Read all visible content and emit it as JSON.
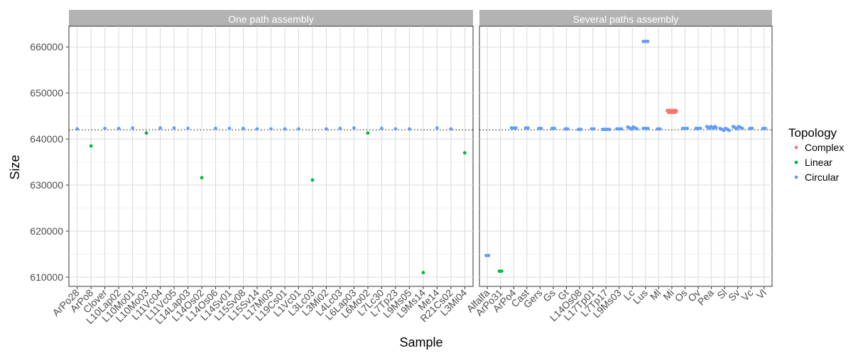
{
  "colors": {
    "Complex": "#F8766D",
    "Linear": "#00BA38",
    "Circular": "#619CFF"
  },
  "chart_data": {
    "type": "scatter",
    "ylabel": "Size",
    "xlabel": "Sample",
    "ylim": [
      608000,
      664500
    ],
    "yticks": [
      610000,
      620000,
      630000,
      640000,
      650000,
      660000
    ],
    "reference_line": 642000,
    "grid": true,
    "legend": {
      "title": "Topology",
      "position": "right",
      "entries": [
        "Complex",
        "Linear",
        "Circular"
      ]
    },
    "panels": [
      {
        "title": "One path assembly",
        "categories": [
          "ArPo28",
          "ArPo8",
          "Clover",
          "L10Lap02",
          "L10Mo01",
          "L10Mo03",
          "L11Vc04",
          "L11Vc05",
          "L14Lap03",
          "L14Os02",
          "L14Os06",
          "L14Sv01",
          "L15Sv08",
          "L15Sv14",
          "L17Mi03",
          "L19Cs01",
          "L1Vc01",
          "L3Lc03",
          "L3Mi02",
          "L4Lc03",
          "L6Lap03",
          "L6Mo02",
          "L7Lc30",
          "L7Tp23",
          "L9Ms05",
          "L9Ms14",
          "Me14",
          "R21Cs02",
          "L3Mi04"
        ],
        "points": [
          {
            "x": "ArPo28",
            "y": 642200,
            "topology": "Circular"
          },
          {
            "x": "ArPo8",
            "y": 638500,
            "topology": "Linear"
          },
          {
            "x": "Clover",
            "y": 642300,
            "topology": "Circular"
          },
          {
            "x": "L10Lap02",
            "y": 642300,
            "topology": "Circular"
          },
          {
            "x": "L10Mo01",
            "y": 642400,
            "topology": "Circular"
          },
          {
            "x": "L10Mo03",
            "y": 641300,
            "topology": "Linear"
          },
          {
            "x": "L11Vc04",
            "y": 642400,
            "topology": "Circular"
          },
          {
            "x": "L11Vc05",
            "y": 642400,
            "topology": "Circular"
          },
          {
            "x": "L14Lap03",
            "y": 642300,
            "topology": "Circular"
          },
          {
            "x": "L14Os02",
            "y": 631600,
            "topology": "Linear"
          },
          {
            "x": "L14Os06",
            "y": 642300,
            "topology": "Circular"
          },
          {
            "x": "L14Sv01",
            "y": 642300,
            "topology": "Circular"
          },
          {
            "x": "L15Sv08",
            "y": 642300,
            "topology": "Circular"
          },
          {
            "x": "L15Sv14",
            "y": 642200,
            "topology": "Circular"
          },
          {
            "x": "L17Mi03",
            "y": 642200,
            "topology": "Circular"
          },
          {
            "x": "L19Cs01",
            "y": 642200,
            "topology": "Circular"
          },
          {
            "x": "L1Vc01",
            "y": 642200,
            "topology": "Circular"
          },
          {
            "x": "L3Lc03",
            "y": 631100,
            "topology": "Linear"
          },
          {
            "x": "L3Mi02",
            "y": 642200,
            "topology": "Circular"
          },
          {
            "x": "L4Lc03",
            "y": 642300,
            "topology": "Circular"
          },
          {
            "x": "L6Lap03",
            "y": 642400,
            "topology": "Circular"
          },
          {
            "x": "L6Mo02",
            "y": 641300,
            "topology": "Linear"
          },
          {
            "x": "L7Lc30",
            "y": 642300,
            "topology": "Circular"
          },
          {
            "x": "L7Tp23",
            "y": 642200,
            "topology": "Circular"
          },
          {
            "x": "L9Ms05",
            "y": 642200,
            "topology": "Circular"
          },
          {
            "x": "L9Ms14",
            "y": 611000,
            "topology": "Linear"
          },
          {
            "x": "Me14",
            "y": 642400,
            "topology": "Circular"
          },
          {
            "x": "R21Cs02",
            "y": 642200,
            "topology": "Circular"
          },
          {
            "x": "L3Mi04",
            "y": 637000,
            "topology": "Linear"
          }
        ]
      },
      {
        "title": "Several paths assembly",
        "categories": [
          "Alfalfa",
          "ArPo31",
          "ArPo4",
          "Cast",
          "Gers",
          "Gs",
          "Gt",
          "L14Os08",
          "L17Tp01",
          "L7Tp17",
          "L9Ms03",
          "Lc",
          "Lus",
          "Ml",
          "Mi",
          "Os",
          "Ov",
          "Pea",
          "Sl",
          "Sv",
          "Vc",
          "Vl"
        ],
        "points": [
          {
            "x": "Alfalfa",
            "y": 614700,
            "topology": "Circular",
            "n": 2
          },
          {
            "x": "ArPo31",
            "y": 611300,
            "topology": "Linear",
            "n": 2
          },
          {
            "x": "ArPo4",
            "y": 642400,
            "topology": "Circular",
            "n": 3
          },
          {
            "x": "Cast",
            "y": 642400,
            "topology": "Circular",
            "n": 2
          },
          {
            "x": "Gers",
            "y": 642300,
            "topology": "Circular",
            "n": 2
          },
          {
            "x": "Gs",
            "y": 642300,
            "topology": "Circular",
            "n": 2
          },
          {
            "x": "Gt",
            "y": 642200,
            "topology": "Circular",
            "n": 2
          },
          {
            "x": "L14Os08",
            "y": 642100,
            "topology": "Circular",
            "n": 2
          },
          {
            "x": "L17Tp01",
            "y": 642200,
            "topology": "Circular",
            "n": 2
          },
          {
            "x": "L7Tp17",
            "y": 642100,
            "topology": "Circular",
            "n": 4
          },
          {
            "x": "L9Ms03",
            "y": 642200,
            "topology": "Circular",
            "n": 3
          },
          {
            "x": "Lc",
            "y": 642400,
            "topology": "Circular",
            "n": 6
          },
          {
            "x": "Lus",
            "y": 642300,
            "topology": "Circular",
            "n": 3
          },
          {
            "x": "Lus",
            "y": 661200,
            "topology": "Circular",
            "n": 3
          },
          {
            "x": "Ml",
            "y": 642200,
            "topology": "Circular",
            "n": 2
          },
          {
            "x": "Mi",
            "y": 646000,
            "topology": "Complex",
            "n": 14
          },
          {
            "x": "Os",
            "y": 642300,
            "topology": "Circular",
            "n": 3
          },
          {
            "x": "Ov",
            "y": 642300,
            "topology": "Circular",
            "n": 3
          },
          {
            "x": "Pea",
            "y": 642500,
            "topology": "Circular",
            "n": 8
          },
          {
            "x": "Sl",
            "y": 642100,
            "topology": "Circular",
            "n": 6
          },
          {
            "x": "Sv",
            "y": 642500,
            "topology": "Circular",
            "n": 6
          },
          {
            "x": "Vc",
            "y": 642300,
            "topology": "Circular",
            "n": 2
          },
          {
            "x": "Vl",
            "y": 642300,
            "topology": "Circular",
            "n": 2
          }
        ]
      }
    ]
  }
}
